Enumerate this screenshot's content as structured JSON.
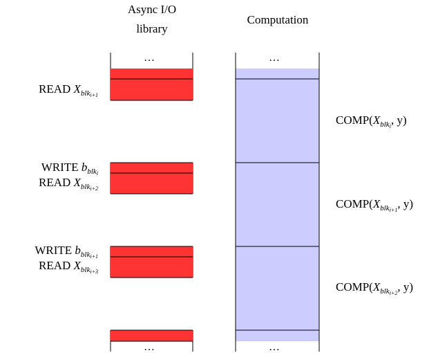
{
  "headers": {
    "io_line1": "Async I/O",
    "io_line2": "library",
    "computation": "Computation"
  },
  "ellipsis": "…",
  "io_labels": [
    {
      "lines": [
        {
          "op": "READ",
          "var": "X",
          "sub": "blk",
          "subsub": "i+1"
        }
      ]
    },
    {
      "lines": [
        {
          "op": "WRITE",
          "var": "b",
          "sub": "blk",
          "subsub": "i"
        },
        {
          "op": "READ",
          "var": "X",
          "sub": "blk",
          "subsub": "i+2"
        }
      ]
    },
    {
      "lines": [
        {
          "op": "WRITE",
          "var": "b",
          "sub": "blk",
          "subsub": "i+1"
        },
        {
          "op": "READ",
          "var": "X",
          "sub": "blk",
          "subsub": "i+3"
        }
      ]
    }
  ],
  "comp_labels": [
    {
      "fn": "COMP(",
      "var": "X",
      "sub": "blk",
      "subsub": "i",
      "rest": ", y)"
    },
    {
      "fn": "COMP(",
      "var": "X",
      "sub": "blk",
      "subsub": "i+1",
      "rest": ", y)"
    },
    {
      "fn": "COMP(",
      "var": "X",
      "sub": "blk",
      "subsub": "i+2",
      "rest": ", y)"
    }
  ],
  "colors": {
    "io": "#fe3333",
    "comp": "#ccccff",
    "line": "#000000"
  }
}
